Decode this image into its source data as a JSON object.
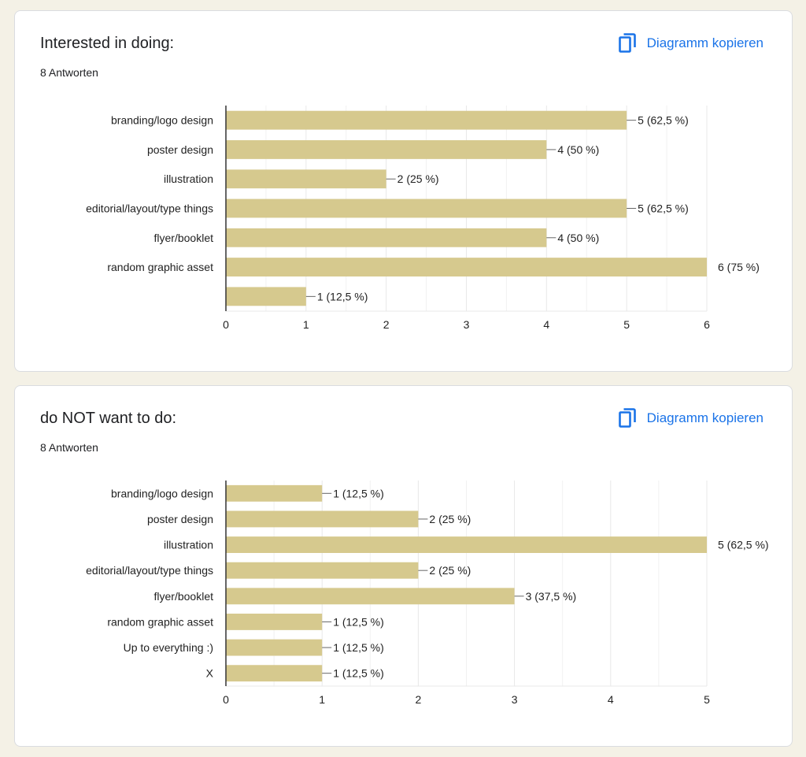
{
  "colors": {
    "bar": "#d6c98e",
    "link": "#1a73e8",
    "grid": "#e8e8e8",
    "axis": "#333333",
    "background": "#f4f1e6"
  },
  "cards": [
    {
      "title": "Interested in doing:",
      "responses": "8 Antworten",
      "copy_label": "Diagramm kopieren",
      "copy_icon": "copy-icon"
    },
    {
      "title": "do NOT want to do:",
      "responses": "8 Antworten",
      "copy_label": "Diagramm kopieren",
      "copy_icon": "copy-icon"
    }
  ],
  "chart_data": [
    {
      "type": "bar",
      "orientation": "horizontal",
      "categories": [
        "branding/logo design",
        "poster design",
        "illustration",
        "editorial/layout/type things",
        "flyer/booklet",
        "random graphic asset",
        ""
      ],
      "values": [
        5,
        4,
        2,
        5,
        4,
        6,
        1
      ],
      "data_labels": [
        "5 (62,5 %)",
        "4 (50 %)",
        "2 (25 %)",
        "5 (62,5 %)",
        "4 (50 %)",
        "6 (75 %)",
        "1 (12,5 %)"
      ],
      "xlim": [
        0,
        6
      ],
      "xticks": [
        0,
        1,
        2,
        3,
        4,
        5,
        6
      ],
      "grid": true,
      "legend": false
    },
    {
      "type": "bar",
      "orientation": "horizontal",
      "categories": [
        "branding/logo design",
        "poster design",
        "illustration",
        "editorial/layout/type things",
        "flyer/booklet",
        "random graphic asset",
        "Up to everything :)",
        "X"
      ],
      "values": [
        1,
        2,
        5,
        2,
        3,
        1,
        1,
        1
      ],
      "data_labels": [
        "1 (12,5 %)",
        "2 (25 %)",
        "5 (62,5 %)",
        "2 (25 %)",
        "3 (37,5 %)",
        "1 (12,5 %)",
        "1 (12,5 %)",
        "1 (12,5 %)"
      ],
      "xlim": [
        0,
        5
      ],
      "xticks": [
        0,
        1,
        2,
        3,
        4,
        5
      ],
      "grid": true,
      "legend": false
    }
  ]
}
